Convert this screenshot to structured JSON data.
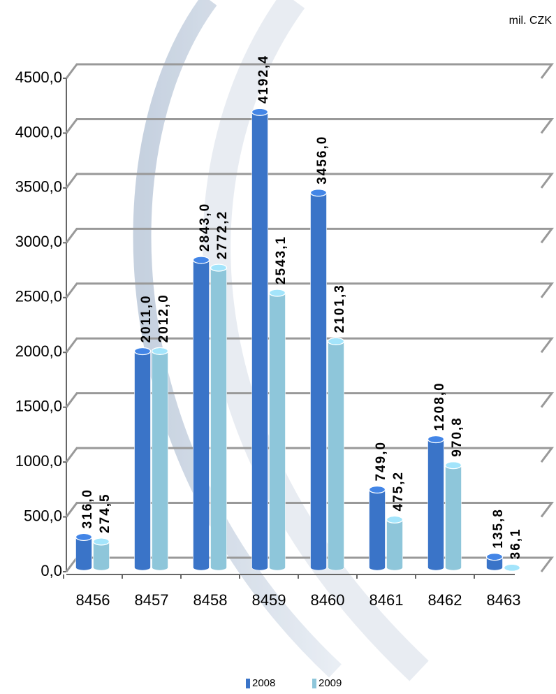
{
  "chart_data": {
    "type": "bar",
    "unit": "mil. CZK",
    "categories": [
      "8456",
      "8457",
      "8458",
      "8459",
      "8460",
      "8461",
      "8462",
      "8463"
    ],
    "series": [
      {
        "name": "2008",
        "color": "#3a74c8",
        "values": [
          316.0,
          2011.0,
          2843.0,
          4192.4,
          3456.0,
          749.0,
          1208.0,
          135.8
        ],
        "value_labels": [
          "316,0",
          "2011,0",
          "2843,0",
          "4192,4",
          "3456,0",
          "749,0",
          "1208,0",
          "135,8"
        ]
      },
      {
        "name": "2009",
        "color": "#8ec6da",
        "values": [
          274.5,
          2012.0,
          2772.2,
          2543.1,
          2101.3,
          475.2,
          970.8,
          36.1
        ],
        "value_labels": [
          "274,5",
          "2012,0",
          "2772,2",
          "2543,1",
          "2101,3",
          "475,2",
          "970,8",
          "36,1"
        ]
      }
    ],
    "ylim": [
      0,
      4500
    ],
    "yticks": [
      {
        "value": 0,
        "label": "0,0"
      },
      {
        "value": 500,
        "label": "500,0"
      },
      {
        "value": 1000,
        "label": "1000,0"
      },
      {
        "value": 1500,
        "label": "1500,0"
      },
      {
        "value": 2000,
        "label": "2000,0"
      },
      {
        "value": 2500,
        "label": "2500,0"
      },
      {
        "value": 3000,
        "label": "3000,0"
      },
      {
        "value": 3500,
        "label": "3500,0"
      },
      {
        "value": 4000,
        "label": "4000,0"
      },
      {
        "value": 4500,
        "label": "4500,0"
      }
    ],
    "grid": true,
    "legend": "bottom"
  }
}
